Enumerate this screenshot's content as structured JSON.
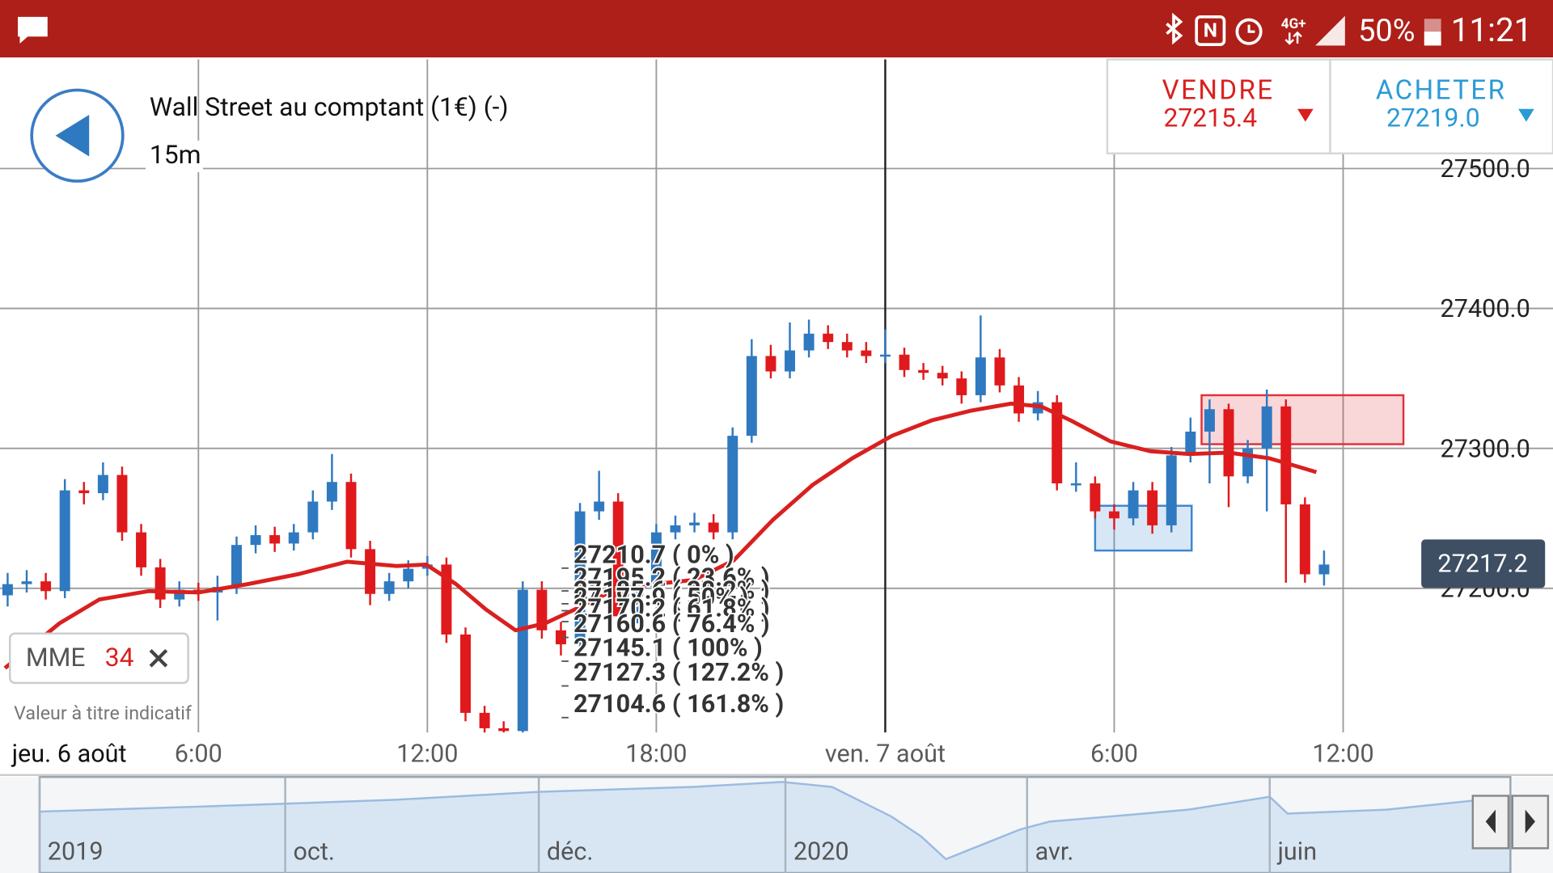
{
  "status_bar": {
    "network": "4G+",
    "battery": "50%",
    "time": "11:21"
  },
  "header": {
    "instrument": "Wall Street au comptant (1€) (-)",
    "timeframe": "15m",
    "sell": {
      "label": "VENDRE",
      "price": "27215.4"
    },
    "buy": {
      "label": "ACHETER",
      "price": "27219.0"
    }
  },
  "indicator": {
    "name": "MME",
    "period": "34"
  },
  "disclaimer": "Valeur à titre indicatif",
  "chart_data": {
    "type": "candlestick",
    "first_date_label": "jeu. 6 août",
    "x": [
      1,
      1.5,
      2,
      2.5,
      3,
      3.5,
      4,
      4.5,
      5,
      5.5,
      6,
      6.5,
      7,
      7.5,
      8,
      8.5,
      9,
      9.5,
      10,
      10.5,
      11,
      11.5,
      12,
      12.5,
      13,
      13.5,
      14,
      14.5,
      15,
      15.5,
      16,
      16.5,
      17,
      17.5,
      18,
      18.5,
      19,
      19.5,
      20,
      20.5,
      21,
      21.5,
      22,
      22.5,
      23,
      23.5,
      24,
      24.5,
      25,
      25.5,
      26,
      26.5,
      27,
      27.5,
      28,
      28.5,
      29,
      29.5,
      30,
      30.5,
      31,
      31.5,
      32,
      32.5,
      33,
      33.5,
      34,
      34.5,
      35,
      35.5
    ],
    "open": [
      27195,
      27203,
      27205,
      27198,
      27270,
      27268,
      27281,
      27240,
      27215,
      27192,
      27199,
      27197,
      27201,
      27231,
      27238,
      27232,
      27240,
      27262,
      27276,
      27228,
      27196,
      27205,
      27214,
      27217,
      27167,
      27111,
      27100,
      27098,
      27199,
      27170,
      27160,
      27255,
      27262,
      27180,
      27200,
      27240,
      27245,
      27247,
      27240,
      27309,
      27366,
      27355,
      27370,
      27382,
      27376,
      27370,
      27366,
      27367,
      27356,
      27354,
      27350,
      27338,
      27365,
      27345,
      27325,
      27333,
      27275,
      27275,
      27255,
      27250,
      27270,
      27245,
      27295,
      27312,
      27328,
      27280,
      27300,
      27330,
      27260,
      27210
    ],
    "high": [
      27211,
      27213,
      27211,
      27278,
      27276,
      27290,
      27287,
      27246,
      27221,
      27205,
      27204,
      27209,
      27237,
      27245,
      27244,
      27246,
      27270,
      27296,
      27282,
      27234,
      27211,
      27220,
      27223,
      27222,
      27172,
      27116,
      27105,
      27205,
      27205,
      27176,
      27261,
      27284,
      27268,
      27206,
      27246,
      27252,
      27254,
      27253,
      27315,
      27378,
      27374,
      27390,
      27392,
      27388,
      27382,
      27376,
      27385,
      27372,
      27361,
      27359,
      27355,
      27395,
      27371,
      27351,
      27341,
      27338,
      27290,
      27280,
      27260,
      27276,
      27276,
      27301,
      27322,
      27335,
      27332,
      27306,
      27342,
      27335,
      27265,
      27227
    ],
    "low": [
      27187,
      27197,
      27192,
      27193,
      27260,
      27263,
      27234,
      27209,
      27186,
      27187,
      27191,
      27177,
      27196,
      27225,
      27226,
      27227,
      27235,
      27256,
      27222,
      27188,
      27191,
      27200,
      27209,
      27161,
      27105,
      27090,
      27088,
      27088,
      27164,
      27152,
      27154,
      27249,
      27172,
      27175,
      27195,
      27235,
      27240,
      27235,
      27235,
      27304,
      27350,
      27350,
      27365,
      27371,
      27365,
      27361,
      27361,
      27351,
      27349,
      27345,
      27332,
      27333,
      27340,
      27319,
      27320,
      27270,
      27269,
      27250,
      27242,
      27245,
      27239,
      27240,
      27290,
      27275,
      27258,
      27275,
      27255,
      27204,
      27204,
      27202
    ],
    "close": [
      27203,
      27205,
      27198,
      27270,
      27268,
      27281,
      27240,
      27215,
      27192,
      27199,
      27197,
      27201,
      27231,
      27238,
      27232,
      27240,
      27262,
      27276,
      27228,
      27196,
      27205,
      27214,
      27217,
      27167,
      27111,
      27100,
      27098,
      27199,
      27170,
      27160,
      27255,
      27262,
      27180,
      27200,
      27240,
      27245,
      27247,
      27240,
      27309,
      27366,
      27355,
      27370,
      27382,
      27376,
      27370,
      27366,
      27367,
      27356,
      27354,
      27350,
      27338,
      27365,
      27345,
      27325,
      27333,
      27275,
      27275,
      27255,
      27250,
      27270,
      27245,
      27295,
      27312,
      27328,
      27280,
      27300,
      27330,
      27260,
      27210,
      27217
    ],
    "up_color": "#2f79c0",
    "down_color": "#e0191c",
    "ma": {
      "color": "#d9201f",
      "x": [
        0.93,
        2.36,
        3.4,
        4.7,
        6,
        7.3,
        8.6,
        9.9,
        11.19,
        11.97,
        12.75,
        13.53,
        14.31,
        15.09,
        15.87,
        16.91,
        17.95,
        18.99,
        20.03,
        21.06,
        22.1,
        23.14,
        24.18,
        25.22,
        26.26,
        27.3,
        28.08,
        28.86,
        29.9,
        30.94,
        31.97,
        33.01,
        34.05,
        34.57,
        35.3
      ],
      "values": [
        27143,
        27175,
        27192,
        27198,
        27197,
        27203,
        27210,
        27219,
        27216,
        27217,
        27203,
        27185,
        27170,
        27175,
        27185,
        27199,
        27203,
        27206,
        27220,
        27249,
        27274,
        27293,
        27309,
        27320,
        27327,
        27332,
        27330,
        27320,
        27305,
        27298,
        27296,
        27297,
        27293,
        27289,
        27283
      ]
    },
    "zones": [
      {
        "x": [
          29.5,
          32.03
        ],
        "y": [
          27227,
          27259
        ],
        "color": "#3a86d0"
      },
      {
        "x": [
          32.29,
          37.58
        ],
        "y": [
          27303,
          27338
        ],
        "color": "#e0303a"
      }
    ],
    "fibonacci_labels": [
      "27210.7 ( 0% )",
      "27195.2 ( 23.6% )",
      "27185.6 ( 38.2% )",
      "27177.9 ( 50% )",
      "27170.2 ( 61.8% )",
      "27160.6 ( 76.4% )",
      "27145.1 ( 100% )",
      "27127.3 ( 127.2% )",
      "27104.6 ( 161.8% )"
    ],
    "current_price": 27217.2,
    "crosshair_x": 24,
    "grid": true,
    "xlim": [
      0.8,
      41.5
    ],
    "ylim": [
      27097,
      27578
    ],
    "xticks": [
      {
        "value": 6,
        "label": "6:00"
      },
      {
        "value": 12,
        "label": "12:00"
      },
      {
        "value": 18,
        "label": "18:00"
      },
      {
        "value": 24,
        "label": "ven. 7 août"
      },
      {
        "value": 30,
        "label": "6:00"
      },
      {
        "value": 36,
        "label": "12:00"
      }
    ],
    "yticks": [
      {
        "value": 27200,
        "label": "27200.0"
      },
      {
        "value": 27300,
        "label": "27300.0"
      },
      {
        "value": 27400,
        "label": "27400.0"
      },
      {
        "value": 27500,
        "label": "27500.0"
      }
    ]
  },
  "navigator": {
    "labels": [
      "2019",
      "oct.",
      "déc.",
      "2020",
      "avr.",
      "juin"
    ]
  }
}
